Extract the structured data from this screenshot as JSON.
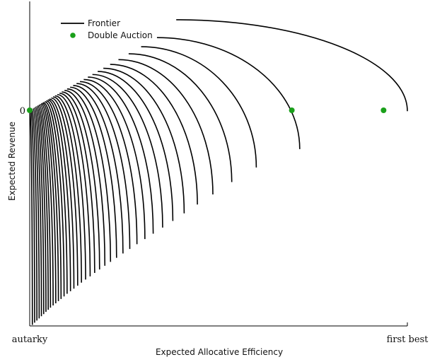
{
  "chart_data": {
    "type": "line",
    "xlabel": "Expected Allocative Efficiency",
    "ylabel": "Expected Revenue",
    "x_tick_labels": [
      "autarky",
      "first best"
    ],
    "y_tick_labels": [
      "0"
    ],
    "legend": {
      "position": "top-left",
      "entries": [
        {
          "label": "Frontier",
          "marker": "line",
          "color": "#000000"
        },
        {
          "label": "Double Auction",
          "marker": "dot",
          "color": "#1aa01a"
        }
      ]
    },
    "grid": false,
    "xlim": [
      0,
      1
    ],
    "ylim": [
      -1,
      0.48
    ],
    "frontier_count": 40,
    "frontiers": [
      {
        "x_min": 0.0,
        "x_max": 0.007,
        "y_max": 0.001,
        "y_min": -0.995
      },
      {
        "x_min": 0.003,
        "x_max": 0.013,
        "y_max": 0.003,
        "y_min": -0.985
      },
      {
        "x_min": 0.006,
        "x_max": 0.019,
        "y_max": 0.006,
        "y_min": -0.975
      },
      {
        "x_min": 0.009,
        "x_max": 0.025,
        "y_max": 0.009,
        "y_min": -0.965
      },
      {
        "x_min": 0.012,
        "x_max": 0.031,
        "y_max": 0.012,
        "y_min": -0.955
      },
      {
        "x_min": 0.015,
        "x_max": 0.037,
        "y_max": 0.015,
        "y_min": -0.945
      },
      {
        "x_min": 0.018,
        "x_max": 0.043,
        "y_max": 0.018,
        "y_min": -0.935
      },
      {
        "x_min": 0.021,
        "x_max": 0.049,
        "y_max": 0.021,
        "y_min": -0.925
      },
      {
        "x_min": 0.024,
        "x_max": 0.055,
        "y_max": 0.024,
        "y_min": -0.915
      },
      {
        "x_min": 0.027,
        "x_max": 0.062,
        "y_max": 0.027,
        "y_min": -0.905
      },
      {
        "x_min": 0.03,
        "x_max": 0.069,
        "y_max": 0.03,
        "y_min": -0.895
      },
      {
        "x_min": 0.033,
        "x_max": 0.076,
        "y_max": 0.033,
        "y_min": -0.885
      },
      {
        "x_min": 0.036,
        "x_max": 0.083,
        "y_max": 0.036,
        "y_min": -0.875
      },
      {
        "x_min": 0.04,
        "x_max": 0.091,
        "y_max": 0.04,
        "y_min": -0.863
      },
      {
        "x_min": 0.044,
        "x_max": 0.099,
        "y_max": 0.044,
        "y_min": -0.851
      },
      {
        "x_min": 0.048,
        "x_max": 0.108,
        "y_max": 0.048,
        "y_min": -0.839
      },
      {
        "x_min": 0.052,
        "x_max": 0.117,
        "y_max": 0.052,
        "y_min": -0.827
      },
      {
        "x_min": 0.057,
        "x_max": 0.127,
        "y_max": 0.057,
        "y_min": -0.813
      },
      {
        "x_min": 0.062,
        "x_max": 0.137,
        "y_max": 0.062,
        "y_min": -0.799
      },
      {
        "x_min": 0.067,
        "x_max": 0.148,
        "y_max": 0.067,
        "y_min": -0.785
      },
      {
        "x_min": 0.073,
        "x_max": 0.16,
        "y_max": 0.073,
        "y_min": -0.77
      },
      {
        "x_min": 0.079,
        "x_max": 0.172,
        "y_max": 0.079,
        "y_min": -0.754
      },
      {
        "x_min": 0.085,
        "x_max": 0.185,
        "y_max": 0.085,
        "y_min": -0.738
      },
      {
        "x_min": 0.092,
        "x_max": 0.199,
        "y_max": 0.092,
        "y_min": -0.721
      },
      {
        "x_min": 0.099,
        "x_max": 0.214,
        "y_max": 0.099,
        "y_min": -0.703
      },
      {
        "x_min": 0.107,
        "x_max": 0.23,
        "y_max": 0.107,
        "y_min": -0.684
      },
      {
        "x_min": 0.115,
        "x_max": 0.247,
        "y_max": 0.115,
        "y_min": -0.664
      },
      {
        "x_min": 0.124,
        "x_max": 0.265,
        "y_max": 0.124,
        "y_min": -0.643
      },
      {
        "x_min": 0.133,
        "x_max": 0.284,
        "y_max": 0.133,
        "y_min": -0.621
      },
      {
        "x_min": 0.143,
        "x_max": 0.305,
        "y_max": 0.143,
        "y_min": -0.597
      },
      {
        "x_min": 0.154,
        "x_max": 0.327,
        "y_max": 0.154,
        "y_min": -0.572
      },
      {
        "x_min": 0.166,
        "x_max": 0.352,
        "y_max": 0.166,
        "y_min": -0.544
      },
      {
        "x_min": 0.18,
        "x_max": 0.379,
        "y_max": 0.18,
        "y_min": -0.513
      },
      {
        "x_min": 0.195,
        "x_max": 0.409,
        "y_max": 0.195,
        "y_min": -0.478
      },
      {
        "x_min": 0.213,
        "x_max": 0.444,
        "y_max": 0.213,
        "y_min": -0.437
      },
      {
        "x_min": 0.235,
        "x_max": 0.485,
        "y_max": 0.235,
        "y_min": -0.39
      },
      {
        "x_min": 0.262,
        "x_max": 0.535,
        "y_max": 0.262,
        "y_min": -0.333
      },
      {
        "x_min": 0.295,
        "x_max": 0.6,
        "y_max": 0.295,
        "y_min": -0.265
      },
      {
        "x_min": 0.337,
        "x_max": 0.715,
        "y_max": 0.337,
        "y_min": -0.18
      },
      {
        "x_min": 0.388,
        "x_max": 1.0,
        "y_max": 0.42,
        "y_min": -0.004
      }
    ],
    "double_auction_points": [
      {
        "x": 0.0,
        "y": 0.0
      },
      {
        "x": 0.694,
        "y": 0.0
      },
      {
        "x": 0.937,
        "y": 0.0
      }
    ]
  }
}
